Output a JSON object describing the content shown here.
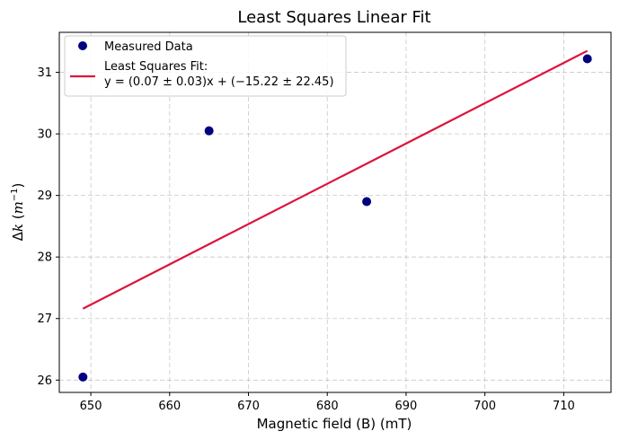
{
  "chart_data": {
    "type": "scatter",
    "title": "Least Squares Linear Fit",
    "xlabel": "Magnetic field (B) (mT)",
    "ylabel": {
      "prefix": "Δ",
      "var": "k",
      "open": " (",
      "unit": "m",
      "sup": "−1",
      "close": ")"
    },
    "xlim": [
      646,
      716
    ],
    "ylim": [
      25.8,
      31.65
    ],
    "xticks": [
      650,
      660,
      670,
      680,
      690,
      700,
      710
    ],
    "yticks": [
      26,
      27,
      28,
      29,
      30,
      31
    ],
    "grid": true,
    "legend_position": "top-left",
    "series": [
      {
        "name": "Measured Data",
        "kind": "scatter",
        "color": "#000080",
        "x": [
          649,
          665,
          685,
          713
        ],
        "y": [
          26.05,
          30.05,
          28.9,
          31.22
        ]
      },
      {
        "name": "Least Squares Fit:",
        "kind": "line",
        "color": "#dc143c",
        "x": [
          649,
          713
        ],
        "y": [
          27.16,
          31.35
        ]
      }
    ],
    "fit_equation": "y = (0.07 ± 0.03)x + (−15.22 ± 22.45)"
  }
}
